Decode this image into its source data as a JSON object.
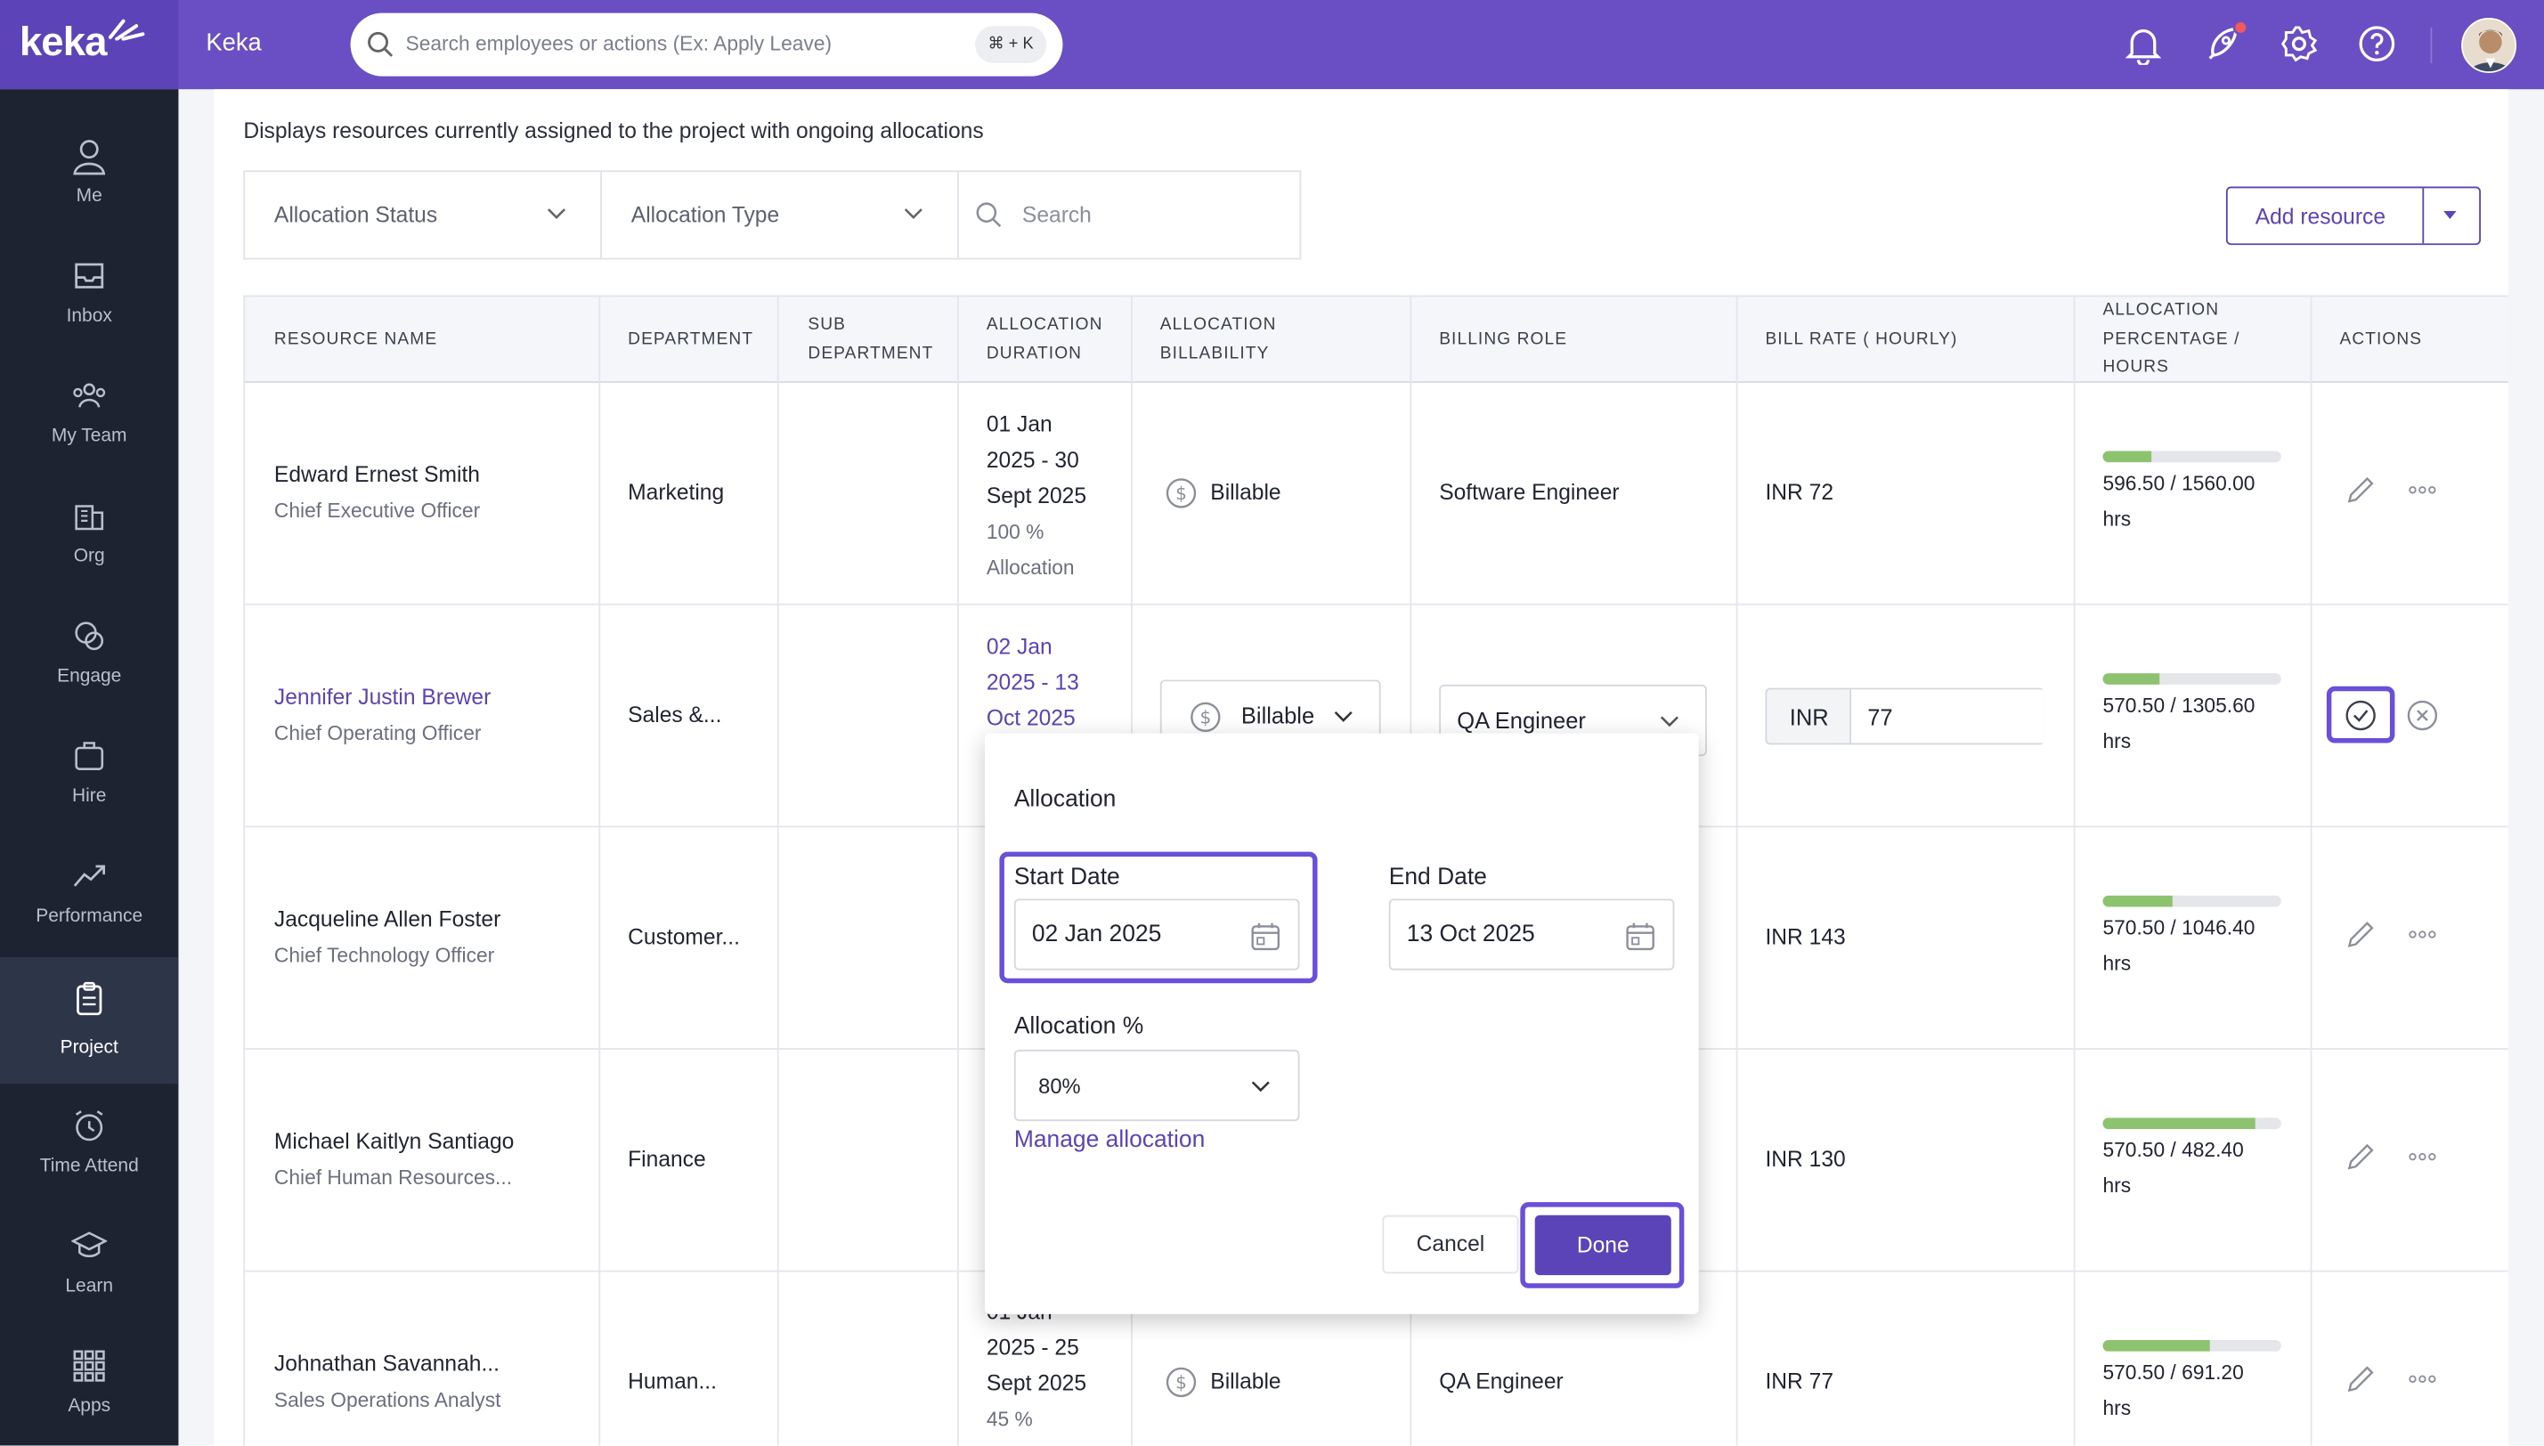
{
  "app": {
    "logo_text": "keka",
    "company": "Keka"
  },
  "search": {
    "placeholder": "Search employees or actions (Ex: Apply Leave)",
    "shortcut": "⌘ + K"
  },
  "sidebar": {
    "items": [
      {
        "label": "Me",
        "icon": "person-icon"
      },
      {
        "label": "Inbox",
        "icon": "inbox-icon"
      },
      {
        "label": "My Team",
        "icon": "team-icon"
      },
      {
        "label": "Org",
        "icon": "org-icon"
      },
      {
        "label": "Engage",
        "icon": "engage-icon"
      },
      {
        "label": "Hire",
        "icon": "briefcase-icon"
      },
      {
        "label": "Performance",
        "icon": "trend-icon"
      },
      {
        "label": "Project",
        "icon": "clipboard-icon",
        "active": true
      },
      {
        "label": "Time Attend",
        "icon": "alarm-icon"
      },
      {
        "label": "Learn",
        "icon": "graduation-cap-icon"
      },
      {
        "label": "Apps",
        "icon": "apps-grid-icon"
      }
    ]
  },
  "page": {
    "description": "Displays resources currently assigned to the project with ongoing allocations",
    "filters": {
      "status": "Allocation Status",
      "type": "Allocation Type",
      "search_placeholder": "Search"
    },
    "add_resource": "Add resource"
  },
  "table": {
    "headers": {
      "resource_name": "RESOURCE NAME",
      "department": "DEPARTMENT",
      "sub_department_1": "SUB",
      "sub_department_2": "DEPARTMENT",
      "duration_1": "ALLOCATION",
      "duration_2": "DURATION",
      "billability_1": "ALLOCATION",
      "billability_2": "BILLABILITY",
      "billing_role": "BILLING ROLE",
      "bill_rate": "BILL RATE ( HOURLY)",
      "alloc_1": "ALLOCATION",
      "alloc_2": "PERCENTAGE /",
      "alloc_3": "HOURS",
      "actions": "ACTIONS"
    },
    "rows": [
      {
        "name": "Edward Ernest Smith",
        "title": "Chief Executive Officer",
        "department": "Marketing",
        "duration": [
          "01 Jan",
          "2025 - 30",
          "Sept 2025"
        ],
        "alloc_pct": "100 %",
        "alloc_word": "Allocation",
        "billability": "Billable",
        "role": "Software Engineer",
        "rate": "INR 72",
        "alloc_value": "596.50 / 1560.00",
        "alloc_unit": "hrs",
        "progress": 0.27
      },
      {
        "name": "Jennifer Justin Brewer",
        "title": "Chief Operating Officer",
        "department": "Sales &...",
        "duration": [
          "02 Jan",
          "2025 - 13",
          "Oct 2025"
        ],
        "billability": "Billable",
        "role": "QA Engineer",
        "rate_currency": "INR",
        "rate_value": "77",
        "alloc_value": "570.50 / 1305.60",
        "alloc_unit": "hrs",
        "progress": 0.32
      },
      {
        "name": "Jacqueline Allen Foster",
        "title": "Chief Technology Officer",
        "department": "Customer...",
        "rate": "INR 143",
        "alloc_value": "570.50 / 1046.40",
        "alloc_unit": "hrs",
        "progress": 0.39
      },
      {
        "name": "Michael Kaitlyn Santiago",
        "title": "Chief Human Resources...",
        "department": "Finance",
        "rate": "INR 130",
        "alloc_value": "570.50 / 482.40",
        "alloc_unit": "hrs",
        "progress": 0.85
      },
      {
        "name": "Johnathan Savannah...",
        "title": "Sales Operations Analyst",
        "department": "Human...",
        "duration": [
          "01 Jan",
          "2025 - 25",
          "Sept 2025"
        ],
        "alloc_pct": "45 %",
        "billability": "Billable",
        "role": "QA Engineer",
        "rate": "INR 77",
        "alloc_value": "570.50 / 691.20",
        "alloc_unit": "hrs",
        "progress": 0.6
      }
    ]
  },
  "popup": {
    "title": "Allocation",
    "start_label": "Start Date",
    "start_value": "02 Jan 2025",
    "end_label": "End Date",
    "end_value": "13 Oct 2025",
    "alloc_label": "Allocation %",
    "alloc_value": "80%",
    "manage": "Manage allocation",
    "cancel": "Cancel",
    "done": "Done"
  },
  "colors": {
    "brand": "#6a4fc4",
    "sidebar": "#1d2330",
    "highlight": "#6a4fd8",
    "progress": "#8dc26f"
  }
}
